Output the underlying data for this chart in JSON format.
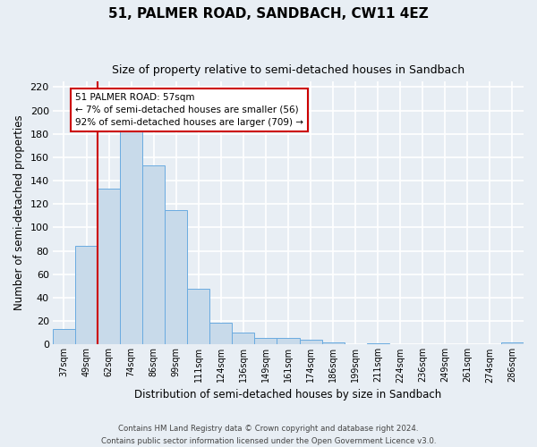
{
  "title": "51, PALMER ROAD, SANDBACH, CW11 4EZ",
  "subtitle": "Size of property relative to semi-detached houses in Sandbach",
  "bar_labels": [
    "37sqm",
    "49sqm",
    "62sqm",
    "74sqm",
    "86sqm",
    "99sqm",
    "111sqm",
    "124sqm",
    "136sqm",
    "149sqm",
    "161sqm",
    "174sqm",
    "186sqm",
    "199sqm",
    "211sqm",
    "224sqm",
    "236sqm",
    "249sqm",
    "261sqm",
    "274sqm",
    "286sqm"
  ],
  "bar_values": [
    13,
    84,
    133,
    183,
    153,
    115,
    48,
    19,
    10,
    6,
    6,
    4,
    2,
    0,
    1,
    0,
    0,
    0,
    0,
    0,
    2
  ],
  "bar_color": "#c8daea",
  "bar_edge_color": "#6aabe0",
  "property_line_x": 1.5,
  "property_line_color": "#cc0000",
  "xlabel": "Distribution of semi-detached houses by size in Sandbach",
  "ylabel": "Number of semi-detached properties",
  "ylim": [
    0,
    225
  ],
  "yticks": [
    0,
    20,
    40,
    60,
    80,
    100,
    120,
    140,
    160,
    180,
    200,
    220
  ],
  "annotation_title": "51 PALMER ROAD: 57sqm",
  "annotation_line1": "← 7% of semi-detached houses are smaller (56)",
  "annotation_line2": "92% of semi-detached houses are larger (709) →",
  "annotation_box_edgecolor": "#cc0000",
  "footer_line1": "Contains HM Land Registry data © Crown copyright and database right 2024.",
  "footer_line2": "Contains public sector information licensed under the Open Government Licence v3.0.",
  "bg_color": "#e8eef4",
  "grid_color": "#d0dce8"
}
